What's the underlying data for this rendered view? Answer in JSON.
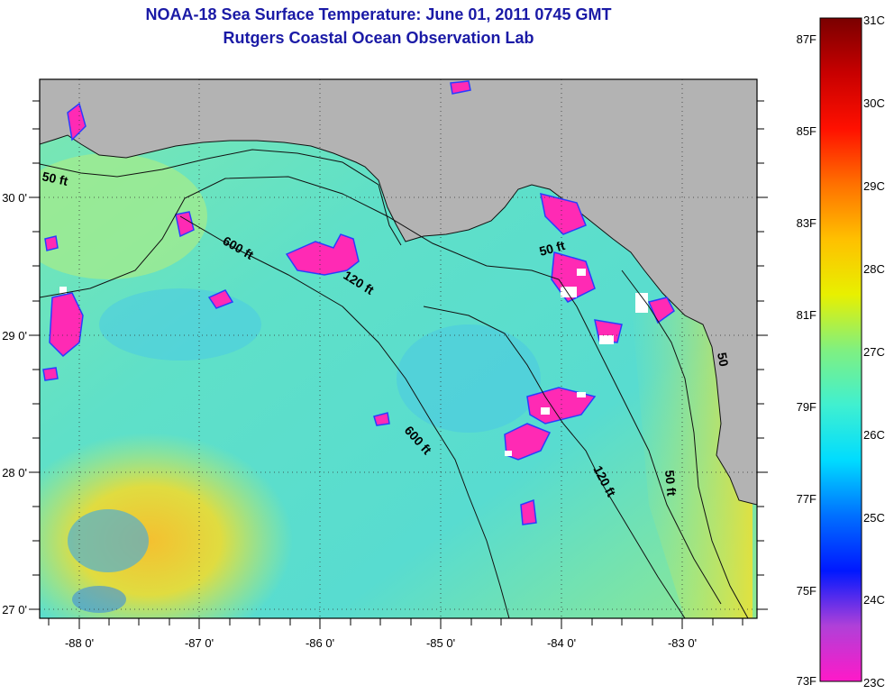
{
  "title": "NOAA-18 Sea Surface Temperature:  June 01, 2011 0745 GMT",
  "subtitle": "Rutgers Coastal Ocean Observation Lab",
  "colors": {
    "land": "#b3b3b3",
    "water_base": "#5fe0c0",
    "title": "#1a1aa6"
  },
  "map": {
    "lon_labels": [
      "-88 0'",
      "-87 0'",
      "-86 0'",
      "-85 0'",
      "-84 0'",
      "-83 0'"
    ],
    "lat_labels": [
      "30 0'",
      "29 0'",
      "28 0'",
      "27 0'"
    ],
    "contours": [
      {
        "label": "50 ft"
      },
      {
        "label": "600 ft"
      },
      {
        "label": "120 ft"
      },
      {
        "label": "50 ft"
      },
      {
        "label": "600 ft"
      },
      {
        "label": "120 ft"
      },
      {
        "label": "50 ft"
      },
      {
        "label": "50"
      }
    ]
  },
  "colorbar": {
    "celsius": [
      "31C",
      "30C",
      "29C",
      "28C",
      "27C",
      "26C",
      "25C",
      "24C",
      "23C"
    ],
    "fahrenheit": [
      "87F",
      "85F",
      "83F",
      "81F",
      "79F",
      "77F",
      "75F",
      "73F"
    ],
    "stops": [
      "#ff19c8",
      "#b040d8",
      "#0018ff",
      "#0070ff",
      "#00dcff",
      "#40f0d0",
      "#80f080",
      "#e8f000",
      "#ffc000",
      "#ff7000",
      "#ff1000",
      "#c80000",
      "#7a0000"
    ]
  }
}
